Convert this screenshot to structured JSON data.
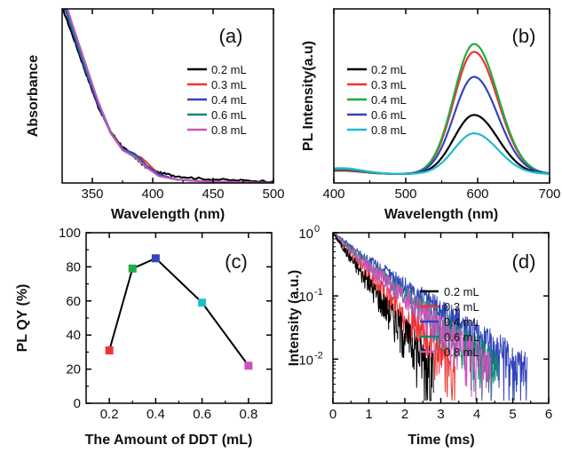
{
  "colors": {
    "black": "#000000",
    "red": "#ee3333",
    "green": "#22aa44",
    "blue": "#3344bb",
    "cyan": "#22bbcc",
    "teal": "#118877",
    "magenta": "#cc55bb"
  },
  "chart_data": [
    {
      "id": "a",
      "type": "line",
      "panel_label": "(a)",
      "xlabel": "Wavelength (nm)",
      "ylabel": "Absorbance",
      "xlim": [
        325,
        500
      ],
      "ylim": [
        0,
        1
      ],
      "xticks": [
        350,
        400,
        450,
        500
      ],
      "yticks": [],
      "legend_position": "right",
      "series": [
        {
          "name": "0.2 mL",
          "color": "#000000",
          "x": [
            325,
            335,
            345,
            355,
            365,
            375,
            385,
            390,
            395,
            405,
            420,
            440,
            470,
            500
          ],
          "y": [
            1.02,
            0.83,
            0.63,
            0.44,
            0.3,
            0.21,
            0.15,
            0.12,
            0.09,
            0.06,
            0.04,
            0.025,
            0.015,
            0.01
          ]
        },
        {
          "name": "0.3 mL",
          "color": "#ee3333",
          "x": [
            327,
            335,
            345,
            355,
            365,
            375,
            385,
            390,
            395,
            405,
            420,
            440,
            470,
            500
          ],
          "y": [
            1.02,
            0.86,
            0.66,
            0.46,
            0.3,
            0.2,
            0.16,
            0.15,
            0.12,
            0.05,
            0.02,
            0.01,
            0.005,
            0.0
          ]
        },
        {
          "name": "0.4 mL",
          "color": "#3344bb",
          "x": [
            327,
            335,
            345,
            355,
            365,
            375,
            385,
            390,
            395,
            405,
            420,
            440,
            470,
            500
          ],
          "y": [
            1.02,
            0.85,
            0.64,
            0.45,
            0.29,
            0.2,
            0.17,
            0.14,
            0.1,
            0.05,
            0.02,
            0.01,
            0.005,
            0.0
          ]
        },
        {
          "name": "0.6 mL",
          "color": "#118877",
          "x": [
            328,
            335,
            345,
            355,
            365,
            375,
            385,
            390,
            395,
            405,
            420,
            440,
            470,
            500
          ],
          "y": [
            1.02,
            0.87,
            0.66,
            0.47,
            0.3,
            0.19,
            0.16,
            0.13,
            0.09,
            0.04,
            0.02,
            0.01,
            0.005,
            0.0
          ]
        },
        {
          "name": "0.8 mL",
          "color": "#cc55bb",
          "x": [
            329,
            335,
            345,
            355,
            365,
            375,
            385,
            390,
            395,
            405,
            420,
            440,
            470,
            500
          ],
          "y": [
            1.02,
            0.89,
            0.68,
            0.47,
            0.29,
            0.19,
            0.15,
            0.12,
            0.09,
            0.04,
            0.02,
            0.01,
            0.005,
            0.0
          ]
        }
      ]
    },
    {
      "id": "b",
      "type": "line",
      "panel_label": "(b)",
      "xlabel": "Wavelength (nm)",
      "ylabel": "PL Intensity(a.u)",
      "xlim": [
        400,
        700
      ],
      "ylim": [
        0,
        1
      ],
      "xticks": [
        400,
        500,
        600,
        700
      ],
      "yticks": [],
      "legend_position": "top-left",
      "series": [
        {
          "name": "0.2 mL",
          "color": "#000000",
          "peak": 0.45
        },
        {
          "name": "0.3 mL",
          "color": "#ee3333",
          "peak": 0.93
        },
        {
          "name": "0.4 mL",
          "color": "#22aa44",
          "peak": 0.99
        },
        {
          "name": "0.6 mL",
          "color": "#3344bb",
          "peak": 0.74
        },
        {
          "name": "0.8 mL",
          "color": "#22bbcc",
          "peak": 0.31
        }
      ],
      "peak_wavelength": 595
    },
    {
      "id": "c",
      "type": "line",
      "panel_label": "(c)",
      "xlabel": "The Amount of DDT (mL)",
      "ylabel": "PL QY (%)",
      "xlim": [
        0.1,
        0.9
      ],
      "ylim": [
        0,
        100
      ],
      "xticks": [
        0.2,
        0.4,
        0.6,
        0.8
      ],
      "xtick_labels": [
        "0.2",
        "0.4",
        "0.6",
        "0.8"
      ],
      "yticks": [
        0,
        20,
        40,
        60,
        80,
        100
      ],
      "x": [
        0.2,
        0.3,
        0.4,
        0.6,
        0.8
      ],
      "y": [
        31,
        79,
        85,
        59,
        22
      ],
      "marker_colors": [
        "#ee3333",
        "#22aa44",
        "#3344bb",
        "#22bbcc",
        "#cc55bb"
      ]
    },
    {
      "id": "d",
      "type": "line",
      "panel_label": "(d)",
      "xlabel": "Time (ms)",
      "ylabel": "Intensity (a.u.)",
      "xlim": [
        0,
        6
      ],
      "ylim": [
        0.002,
        1
      ],
      "yscale": "log",
      "xticks": [
        0,
        1,
        2,
        3,
        4,
        5,
        6
      ],
      "ytick_labels": [
        "10^0",
        "10^-1",
        "10^-2"
      ],
      "legend_position": "top-right",
      "series": [
        {
          "name": "0.2 mL",
          "color": "#000000",
          "end_time": 2.8
        },
        {
          "name": "0.3 mL",
          "color": "#ee3333",
          "end_time": 3.4
        },
        {
          "name": "0.4 mL",
          "color": "#3344bb",
          "end_time": 5.4
        },
        {
          "name": "0.6 mL",
          "color": "#118877",
          "end_time": 4.6
        },
        {
          "name": "0.8 mL",
          "color": "#cc55bb",
          "end_time": 4.4
        }
      ]
    }
  ]
}
